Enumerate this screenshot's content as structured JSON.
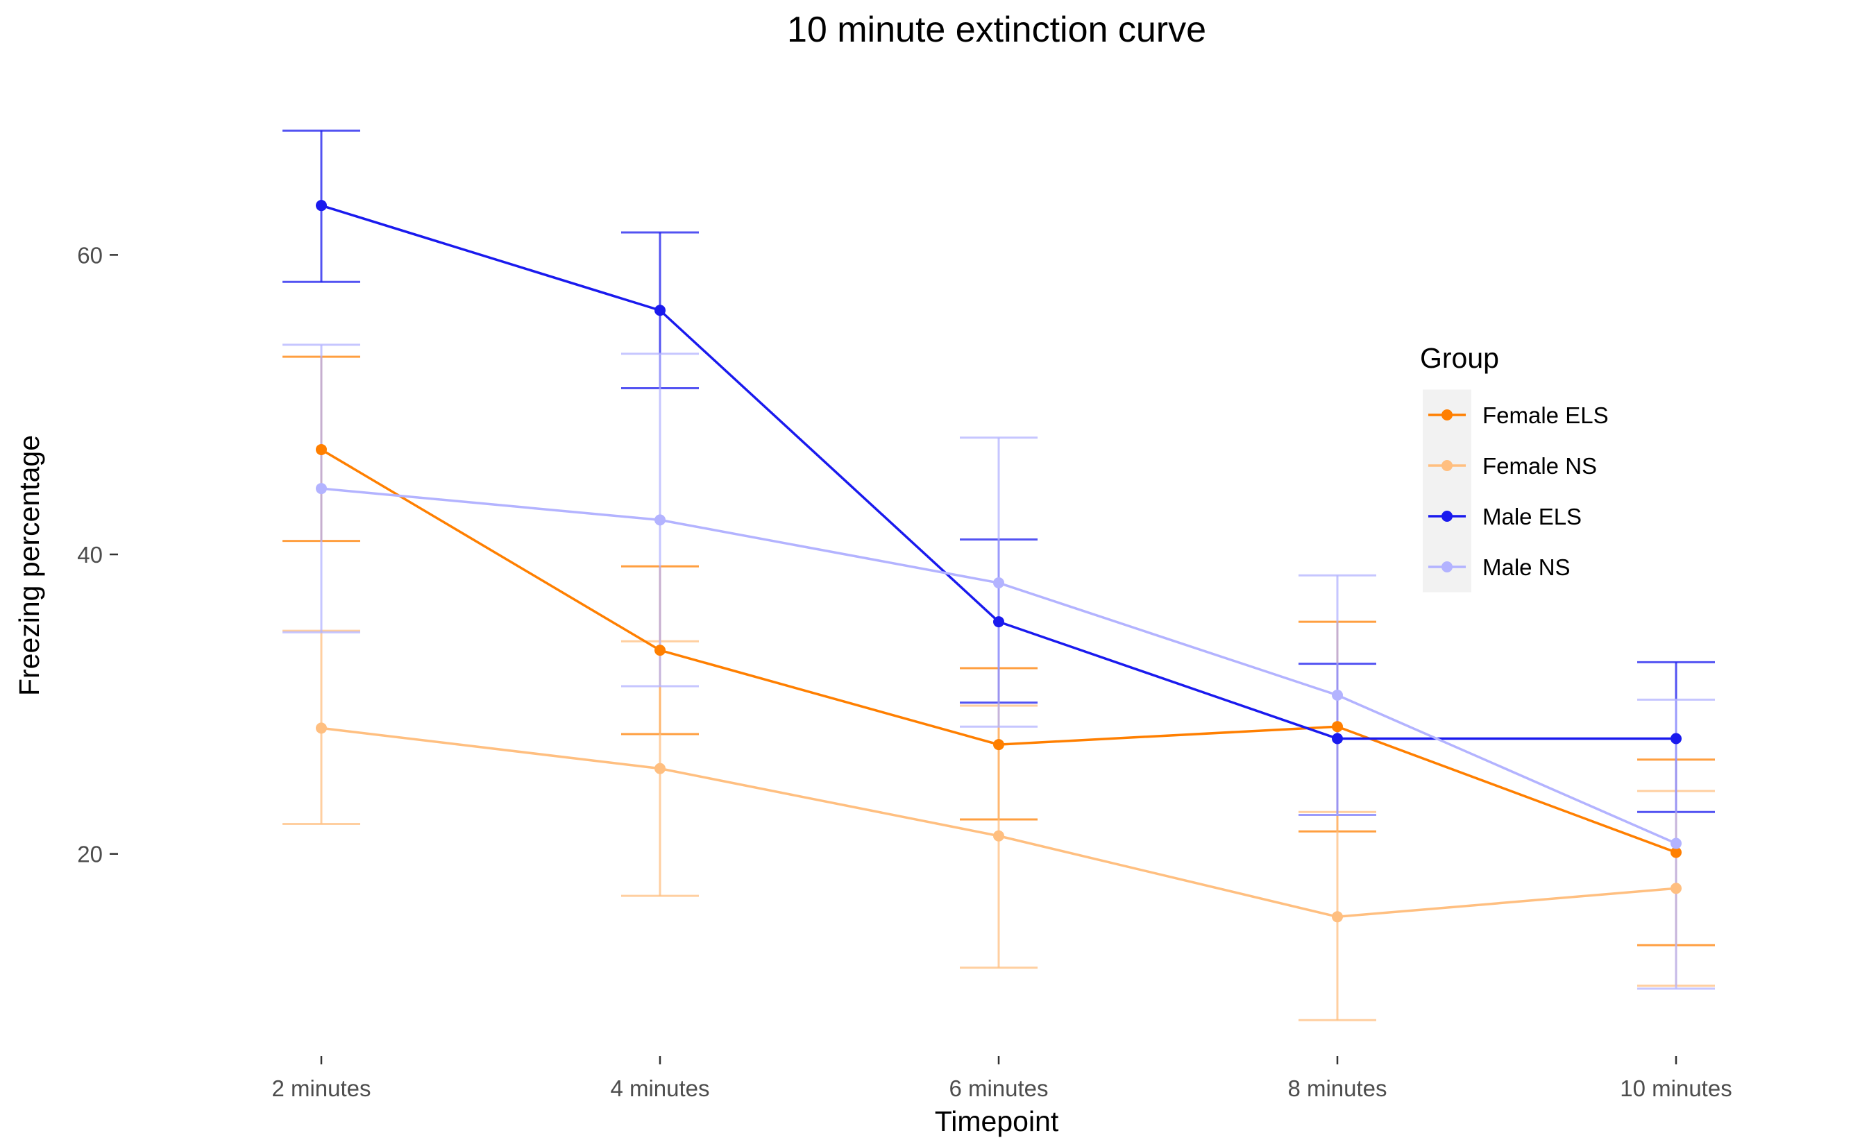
{
  "chart_data": {
    "type": "line",
    "title": "10 minute extinction curve",
    "xlabel": "Timepoint",
    "ylabel": "Freezing percentage",
    "categories": [
      "2 minutes",
      "4 minutes",
      "6 minutes",
      "8 minutes",
      "10 minutes"
    ],
    "yticks": [
      20,
      40,
      60
    ],
    "ylim": [
      6.5,
      71
    ],
    "grid": false,
    "error_bars": true,
    "legend": {
      "title": "Group",
      "position": "right",
      "background": "#f2f2f2"
    },
    "series": [
      {
        "name": "Female ELS",
        "color": "#ff7f00",
        "values": [
          47.0,
          33.6,
          27.3,
          28.5,
          20.1
        ],
        "lower": [
          40.9,
          28.0,
          22.3,
          21.5,
          13.9
        ],
        "upper": [
          53.2,
          39.2,
          32.4,
          35.5,
          26.3
        ]
      },
      {
        "name": "Female NS",
        "color": "#ffbf80",
        "values": [
          28.4,
          25.7,
          21.2,
          15.8,
          17.7
        ],
        "lower": [
          22.0,
          17.2,
          12.4,
          8.9,
          11.2
        ],
        "upper": [
          34.9,
          34.2,
          29.9,
          22.8,
          24.2
        ]
      },
      {
        "name": "Male ELS",
        "color": "#1a1aee",
        "values": [
          63.3,
          56.3,
          35.5,
          27.7,
          27.7
        ],
        "lower": [
          58.2,
          51.1,
          30.1,
          22.6,
          22.8
        ],
        "upper": [
          68.3,
          61.5,
          41.0,
          32.7,
          32.8
        ]
      },
      {
        "name": "Male NS",
        "color": "#b3b3ff",
        "values": [
          44.4,
          42.3,
          38.1,
          30.6,
          20.7
        ],
        "lower": [
          34.8,
          31.2,
          28.5,
          22.6,
          11.0
        ],
        "upper": [
          54.0,
          53.4,
          47.8,
          38.6,
          30.3
        ]
      }
    ]
  }
}
